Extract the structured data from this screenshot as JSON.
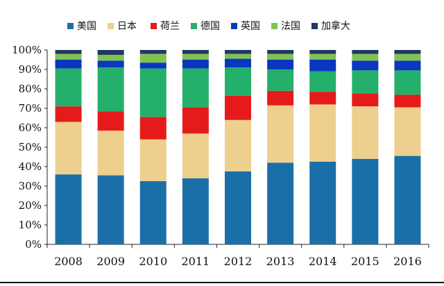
{
  "chart_data": {
    "type": "bar",
    "stacked": true,
    "percent": true,
    "title": "",
    "xlabel": "",
    "ylabel": "",
    "ylim": [
      0,
      100
    ],
    "yticks": [
      "0%",
      "10%",
      "20%",
      "30%",
      "40%",
      "50%",
      "60%",
      "70%",
      "80%",
      "90%",
      "100%"
    ],
    "ytick_values": [
      0,
      10,
      20,
      30,
      40,
      50,
      60,
      70,
      80,
      90,
      100
    ],
    "categories": [
      "2008",
      "2009",
      "2010",
      "2011",
      "2012",
      "2013",
      "2014",
      "2015",
      "2016"
    ],
    "legend_position": "top",
    "series": [
      {
        "name": "美国",
        "color": "#1B6FA8",
        "values": [
          36,
          35.5,
          32.5,
          34,
          37.5,
          42,
          42.5,
          44,
          45.5
        ]
      },
      {
        "name": "日本",
        "color": "#EDCF8E",
        "values": [
          27,
          23,
          21.5,
          23,
          26.5,
          29.5,
          29.5,
          27,
          25
        ]
      },
      {
        "name": "荷兰",
        "color": "#E51B1B",
        "values": [
          8,
          10,
          11.5,
          13.5,
          12.5,
          7.5,
          6.5,
          6.5,
          6.5
        ]
      },
      {
        "name": "德国",
        "color": "#24B06A",
        "values": [
          19.5,
          22.5,
          25,
          20,
          14.5,
          11,
          10.5,
          12,
          12.5
        ]
      },
      {
        "name": "英国",
        "color": "#0A37C0",
        "values": [
          4.5,
          3.5,
          3,
          4.5,
          4.5,
          5,
          6,
          5,
          5
        ]
      },
      {
        "name": "法国",
        "color": "#7FC252",
        "values": [
          3,
          3,
          4.5,
          3,
          2.5,
          3,
          3,
          3.5,
          3.5
        ]
      },
      {
        "name": "加拿大",
        "color": "#1F3864",
        "values": [
          2,
          2.5,
          2,
          2,
          2,
          2,
          2,
          2,
          2
        ]
      }
    ]
  }
}
